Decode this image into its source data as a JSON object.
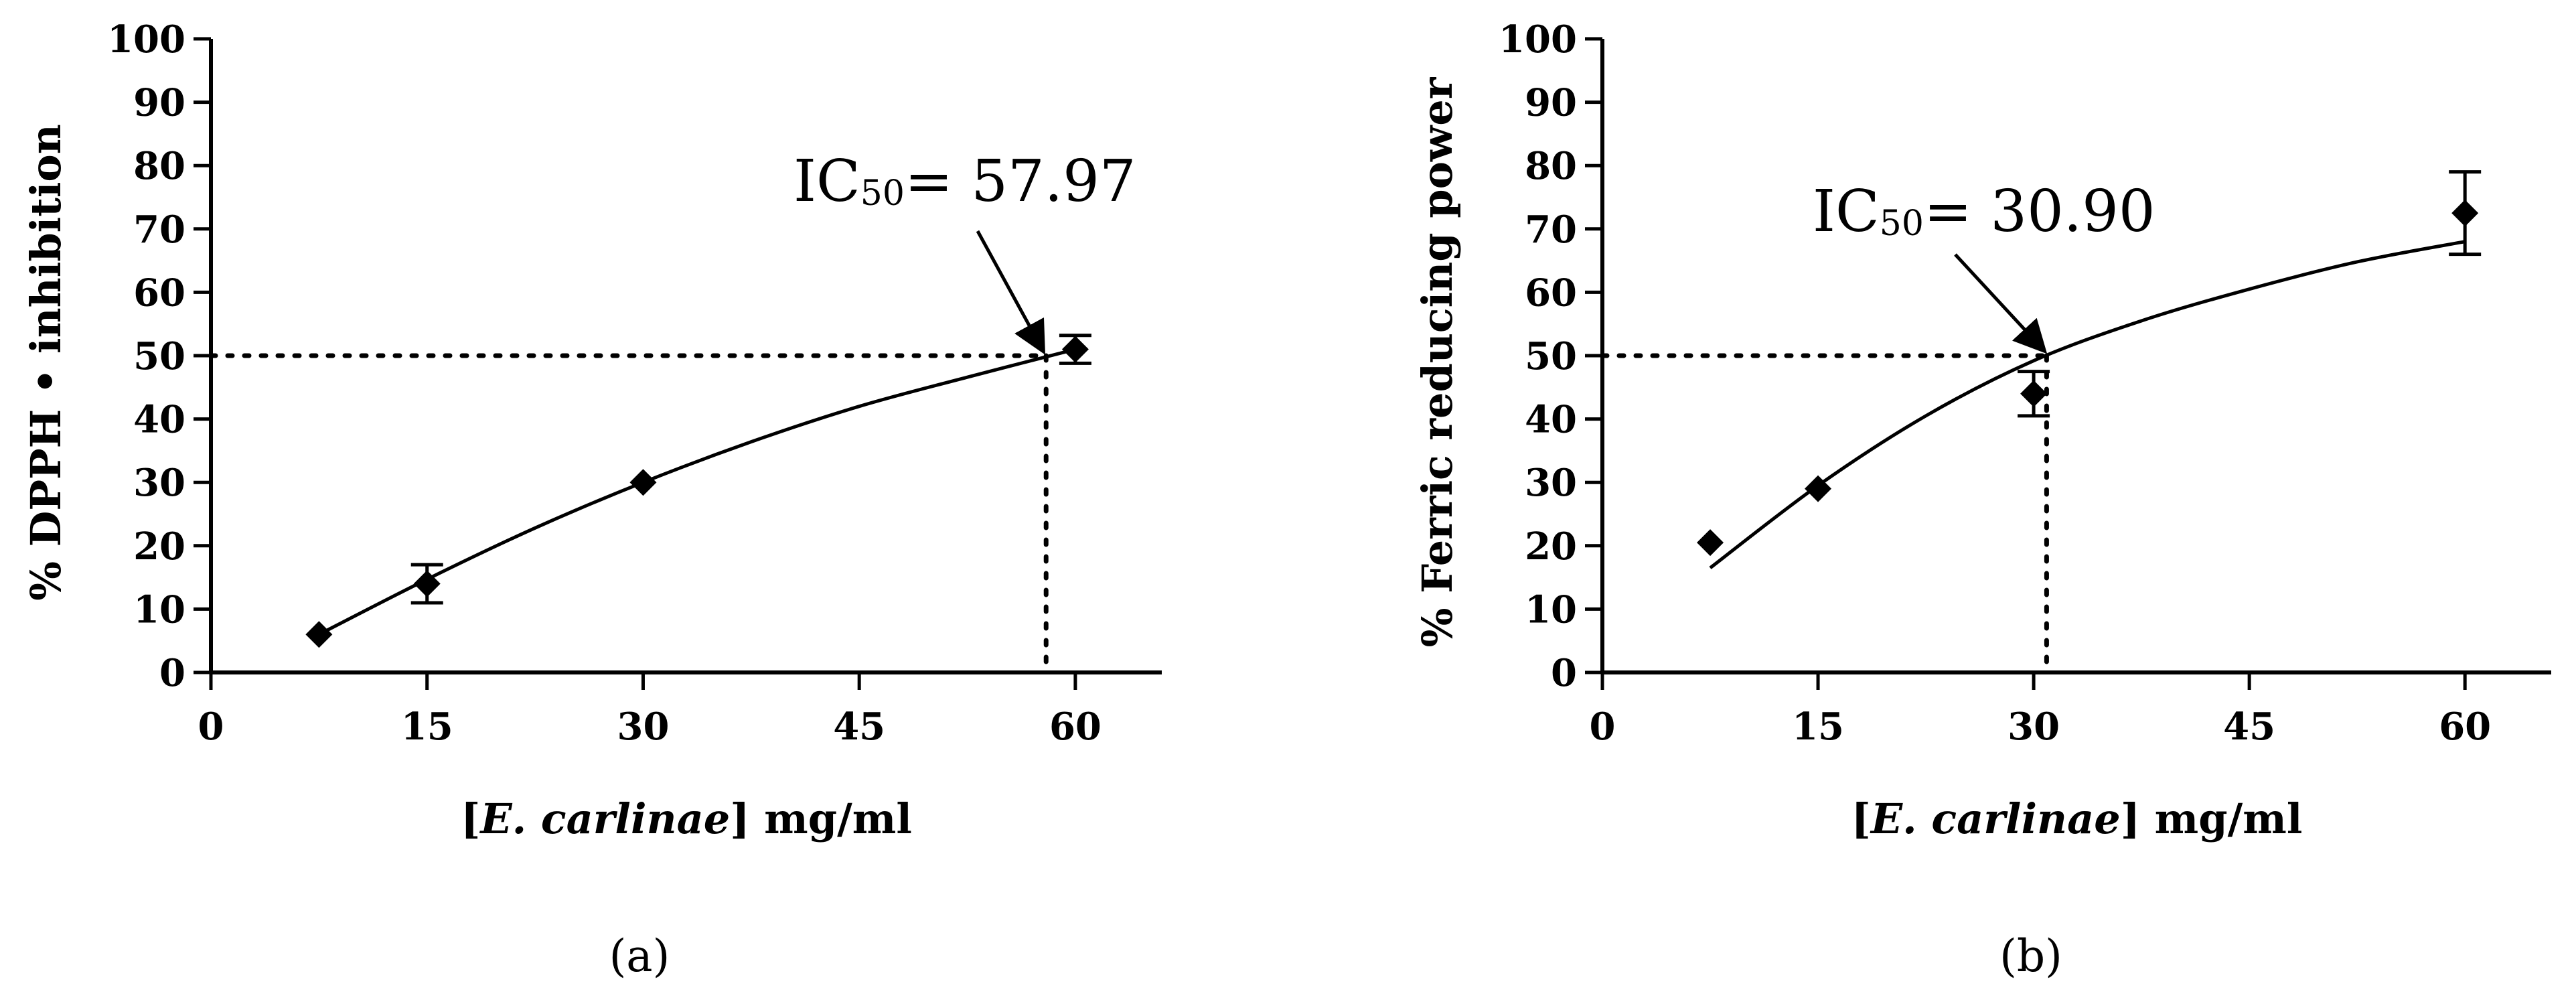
{
  "chart_data": [
    {
      "type": "scatter",
      "panel_label": "(a)",
      "xlabel": {
        "pre": "[",
        "italic": "E. carlinae",
        "post": "] mg/ml"
      },
      "ylabel": "% DPPH • inhibition",
      "xlim": [
        0,
        66
      ],
      "ylim": [
        0,
        100
      ],
      "x_ticks": [
        0,
        15,
        30,
        45,
        60
      ],
      "y_ticks": [
        0,
        10,
        20,
        30,
        40,
        50,
        60,
        70,
        80,
        90,
        100
      ],
      "grid": false,
      "points": [
        {
          "x": 7.5,
          "y": 6,
          "err": 0
        },
        {
          "x": 15,
          "y": 14,
          "err": 3
        },
        {
          "x": 30,
          "y": 30,
          "err": 0
        },
        {
          "x": 60,
          "y": 51,
          "err": 2.2
        }
      ],
      "fit": [
        [
          7.5,
          6
        ],
        [
          15,
          14.7
        ],
        [
          22.5,
          22.8
        ],
        [
          30,
          30
        ],
        [
          37.5,
          36.4
        ],
        [
          45,
          42
        ],
        [
          52.5,
          46.6
        ],
        [
          60,
          51
        ]
      ],
      "reference_line": {
        "y": 50,
        "x": 57.97
      },
      "annotation": {
        "prefix": "IC",
        "sub": "50",
        "suffix": "= 57.97"
      }
    },
    {
      "type": "scatter",
      "panel_label": "(b)",
      "xlabel": {
        "pre": "[",
        "italic": "E. carlinae",
        "post": "] mg/ml"
      },
      "ylabel": "% Ferric reducing power",
      "xlim": [
        0,
        66
      ],
      "ylim": [
        0,
        100
      ],
      "x_ticks": [
        0,
        15,
        30,
        45,
        60
      ],
      "y_ticks": [
        0,
        10,
        20,
        30,
        40,
        50,
        60,
        70,
        80,
        90,
        100
      ],
      "grid": false,
      "points": [
        {
          "x": 7.5,
          "y": 20.5,
          "err": 0
        },
        {
          "x": 15,
          "y": 29,
          "err": 0
        },
        {
          "x": 30,
          "y": 44,
          "err": 3.5
        },
        {
          "x": 60,
          "y": 72.5,
          "err": 6.5
        }
      ],
      "fit": [
        [
          7.5,
          16.5
        ],
        [
          15,
          29.5
        ],
        [
          22.5,
          40.5
        ],
        [
          30,
          49.2
        ],
        [
          37.5,
          55.5
        ],
        [
          45,
          60.5
        ],
        [
          52.5,
          64.8
        ],
        [
          60,
          68
        ]
      ],
      "reference_line": {
        "y": 50,
        "x": 30.9
      },
      "annotation": {
        "prefix": "IC",
        "sub": "50",
        "suffix": "= 30.90"
      }
    }
  ]
}
